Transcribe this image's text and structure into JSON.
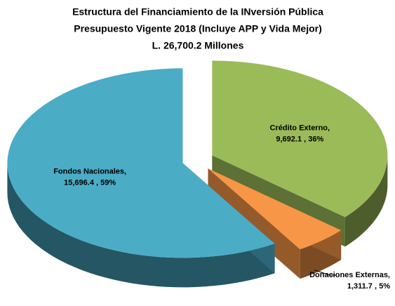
{
  "chart_data": {
    "type": "pie3d",
    "title": [
      "Estructura del Financiamiento de la INversión Pública",
      "Presupuesto Vigente 2018 (Incluye APP y Vida Mejor)",
      "L. 26,700.2 Millones"
    ],
    "categories": [
      "Crédito Externo,",
      "Donaciones Externas,",
      "Fondos Nacionales,"
    ],
    "values": [
      9692.1,
      1311.7,
      15696.4
    ],
    "value_labels": [
      "9,692.1 , 36%",
      "1,311.7 , 5%",
      "15,696.4 , 59%"
    ],
    "colors": [
      "#9bbb59",
      "#f79646",
      "#4bacc6"
    ]
  }
}
